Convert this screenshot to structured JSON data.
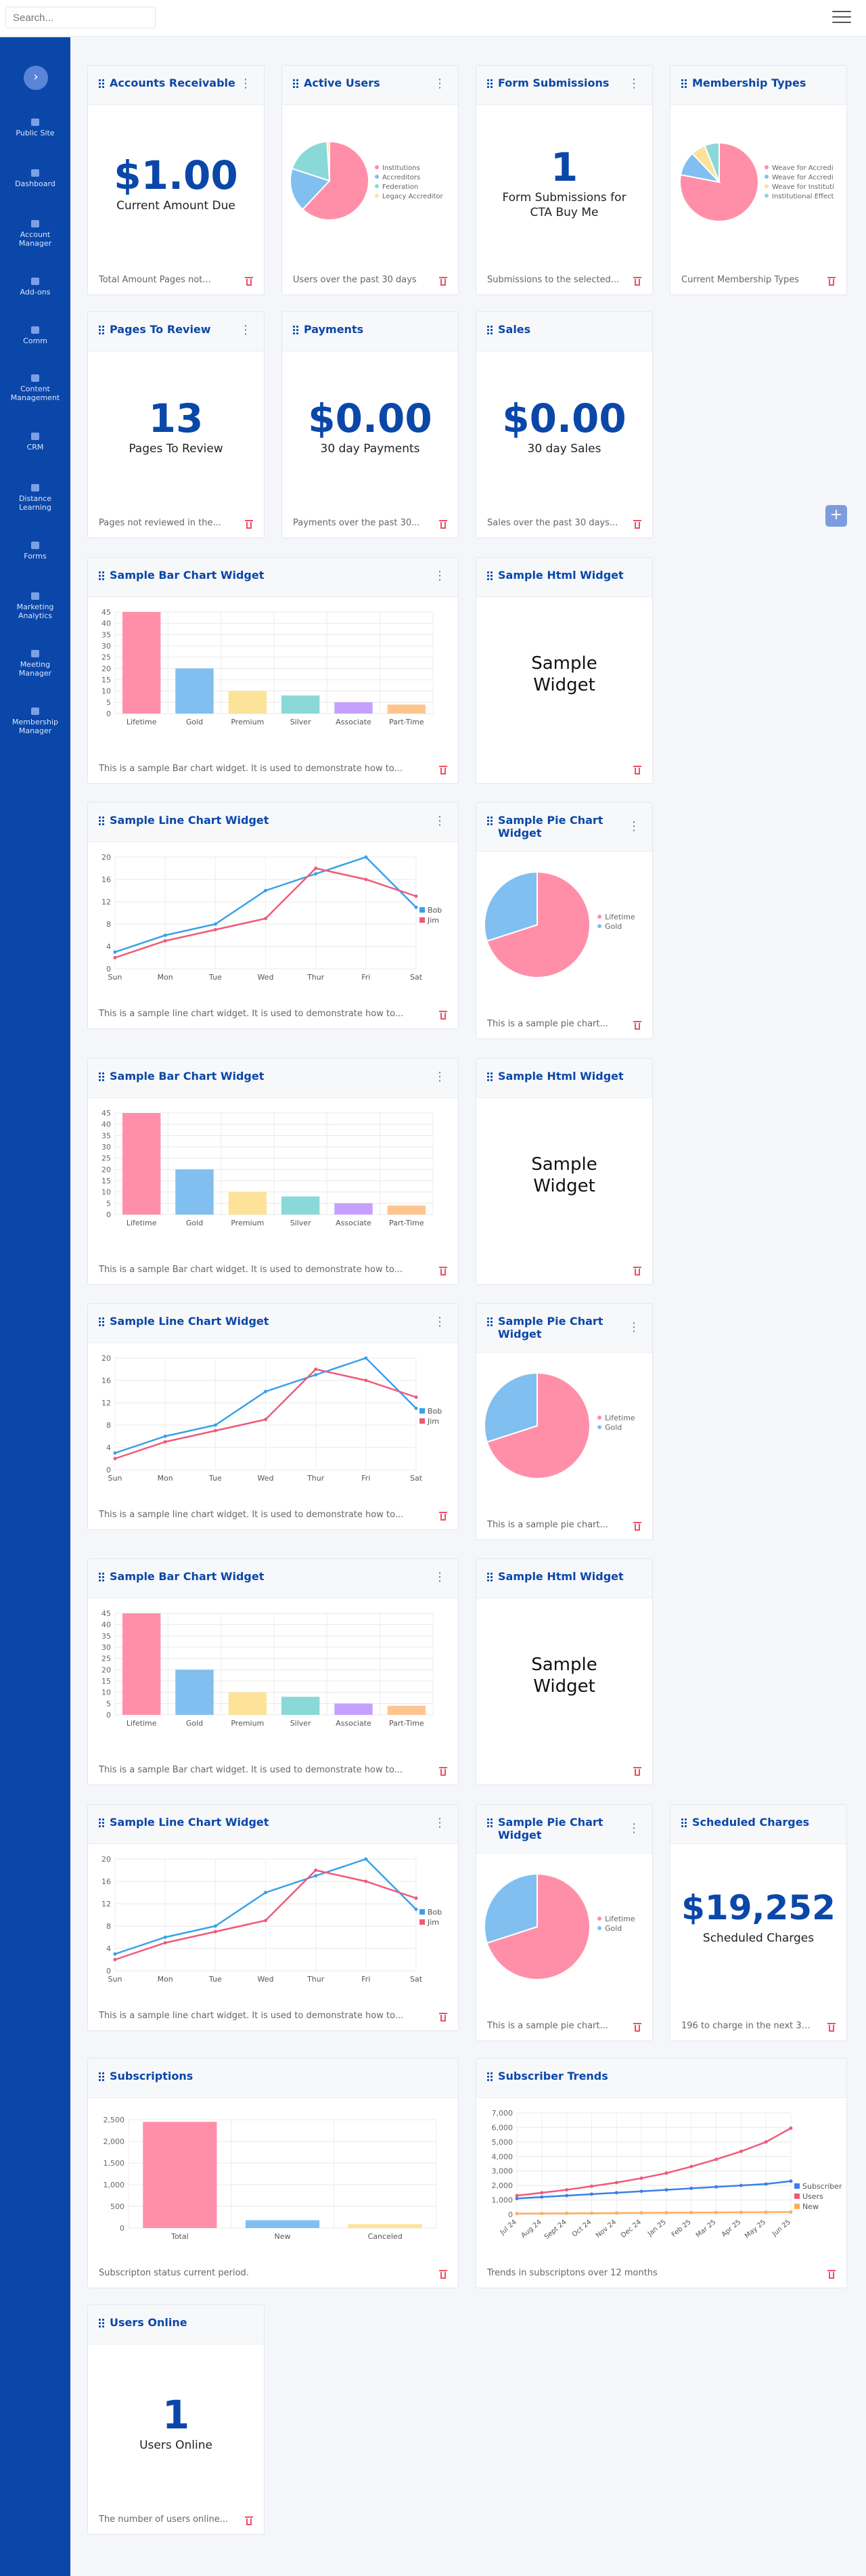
{
  "search": {
    "placeholder": "Search..."
  },
  "sidebar": {
    "items": [
      {
        "label": "Public Site"
      },
      {
        "label": "Dashboard"
      },
      {
        "label": "Account Manager"
      },
      {
        "label": "Add-ons"
      },
      {
        "label": "Comm"
      },
      {
        "label": "Content Management"
      },
      {
        "label": "CRM"
      },
      {
        "label": "Distance Learning"
      },
      {
        "label": "Forms"
      },
      {
        "label": "Marketing Analytics"
      },
      {
        "label": "Meeting Manager"
      },
      {
        "label": "Membership Manager"
      }
    ]
  },
  "widgets": {
    "ar": {
      "title": "Accounts Receivable",
      "value": "$1.00",
      "label": "Current Amount Due",
      "footer": "Total Amount Pages not..."
    },
    "au": {
      "title": "Active Users",
      "footer": "Users over the past 30 days"
    },
    "fs": {
      "title": "Form Submissions",
      "value": "1",
      "label": "Form Submissions for CTA Buy Me",
      "footer": "Submissions to the selected..."
    },
    "mt": {
      "title": "Membership Types",
      "footer": "Current Membership Types"
    },
    "ptr": {
      "title": "Pages To Review",
      "value": "13",
      "label": "Pages To Review",
      "footer": "Pages not reviewed in the..."
    },
    "pay": {
      "title": "Payments",
      "value": "$0.00",
      "label": "30 day Payments",
      "footer": "Payments over the past 30..."
    },
    "sales": {
      "title": "Sales",
      "value": "$0.00",
      "label": "30 day Sales",
      "footer": "Sales over the past 30 days..."
    },
    "bar": {
      "title": "Sample Bar Chart Widget",
      "footer": "This is a sample Bar chart widget. It is used to demonstrate how to..."
    },
    "html": {
      "title": "Sample Html Widget",
      "text": "Sample Widget"
    },
    "line": {
      "title": "Sample Line Chart Widget",
      "footer": "This is a sample line chart widget. It is used to demonstrate how to..."
    },
    "pie": {
      "title": "Sample Pie Chart Widget",
      "footer": "This is a sample pie chart..."
    },
    "sc": {
      "title": "Scheduled Charges",
      "value": "$19,252",
      "label": "Scheduled Charges",
      "footer": "196 to charge in the next 30..."
    },
    "subs": {
      "title": "Subscriptions",
      "footer": "Subscripton status current period."
    },
    "trends": {
      "title": "Subscriber Trends",
      "footer": "Trends in subscriptons over 12 months"
    },
    "uo": {
      "title": "Users Online",
      "value": "1",
      "label": "Users Online",
      "footer": "The number of users online..."
    }
  },
  "colors": {
    "accent": "#0a47a9",
    "pink": "#ff8fa8",
    "blue": "#80bff0",
    "yellow": "#fde39a",
    "teal": "#8ad8d8",
    "purple": "#c5a0ff",
    "orange": "#ffc58f",
    "red": "#ef4d66"
  },
  "chart_data": [
    {
      "id": "active-users",
      "type": "pie",
      "labels": [
        "Institutions",
        "Accreditors",
        "Federation",
        "Legacy Accreditor"
      ],
      "values": [
        62,
        18,
        19,
        1
      ],
      "colors": [
        "#ff8fa8",
        "#80bff0",
        "#8ad8d8",
        "#fde39a"
      ],
      "legend": "right"
    },
    {
      "id": "membership-types",
      "type": "pie",
      "labels": [
        "Weave for Accredi",
        "Weave for Accredi",
        "Weave for Instituti",
        "Institutional Effect"
      ],
      "values": [
        78,
        10,
        6,
        6
      ],
      "colors": [
        "#ff8fa8",
        "#80bff0",
        "#fde39a",
        "#8ad8d8"
      ],
      "legend": "right"
    },
    {
      "id": "sample-bar",
      "type": "bar",
      "categories": [
        "Lifetime",
        "Gold",
        "Premium",
        "Silver",
        "Associate",
        "Part-Time"
      ],
      "values": [
        45,
        20,
        10,
        8,
        5,
        4
      ],
      "colors": [
        "#ff8fa8",
        "#80bff0",
        "#fde39a",
        "#8ad8d8",
        "#c5a0ff",
        "#ffc58f"
      ],
      "ylim": [
        0,
        45
      ],
      "yticks": [
        0,
        5,
        10,
        15,
        20,
        25,
        30,
        35,
        40,
        45
      ],
      "grid": true
    },
    {
      "id": "sample-line",
      "type": "line",
      "categories": [
        "Sun",
        "Mon",
        "Tue",
        "Wed",
        "Thur",
        "Fri",
        "Sat"
      ],
      "series": [
        {
          "name": "Bob",
          "values": [
            3,
            6,
            8,
            14,
            17,
            20,
            11
          ],
          "color": "#3aa0e8"
        },
        {
          "name": "Jim",
          "values": [
            2,
            5,
            7,
            9,
            18,
            16,
            13
          ],
          "color": "#ef5a7a"
        }
      ],
      "ylim": [
        0,
        20
      ],
      "yticks": [
        0,
        4,
        8,
        12,
        16,
        20
      ],
      "legend": "right",
      "grid": true
    },
    {
      "id": "sample-pie",
      "type": "pie",
      "labels": [
        "Lifetime",
        "Gold"
      ],
      "values": [
        70,
        30
      ],
      "colors": [
        "#ff8fa8",
        "#80bff0"
      ],
      "legend": "right"
    },
    {
      "id": "subscriptions",
      "type": "bar",
      "categories": [
        "Total",
        "New",
        "Canceled"
      ],
      "values": [
        2450,
        180,
        90
      ],
      "colors": [
        "#ff8fa8",
        "#80bff0",
        "#fde39a"
      ],
      "ylim": [
        0,
        2500
      ],
      "yticks": [
        0,
        500,
        1000,
        1500,
        2000,
        2500
      ],
      "ytick_labels": [
        "0",
        "500",
        "1,000",
        "1,500",
        "2,000",
        "2,500"
      ],
      "grid": true
    },
    {
      "id": "subscriber-trends",
      "type": "line",
      "categories": [
        "Jul 24",
        "Aug 24",
        "Sept 24",
        "Oct 24",
        "Nov 24",
        "Dec 24",
        "Jan 25",
        "Feb 25",
        "Mar 25",
        "Apr 25",
        "May 25",
        "Jun 25"
      ],
      "series": [
        {
          "name": "Subscribers",
          "values": [
            1100,
            1200,
            1300,
            1400,
            1500,
            1600,
            1700,
            1800,
            1900,
            2000,
            2100,
            2300
          ],
          "color": "#3a80e8"
        },
        {
          "name": "Users",
          "values": [
            1300,
            1500,
            1700,
            1950,
            2200,
            2500,
            2850,
            3300,
            3800,
            4350,
            5000,
            5950
          ],
          "color": "#ef5a7a"
        },
        {
          "name": "New",
          "values": [
            60,
            70,
            80,
            90,
            100,
            110,
            120,
            130,
            140,
            150,
            160,
            170
          ],
          "color": "#ffae5f"
        }
      ],
      "ylim": [
        0,
        7000
      ],
      "yticks": [
        0,
        1000,
        2000,
        3000,
        4000,
        5000,
        6000,
        7000
      ],
      "ytick_labels": [
        "0",
        "1,000",
        "2,000",
        "3,000",
        "4,000",
        "5,000",
        "6,000",
        "7,000"
      ],
      "legend": "right",
      "grid": true
    }
  ]
}
